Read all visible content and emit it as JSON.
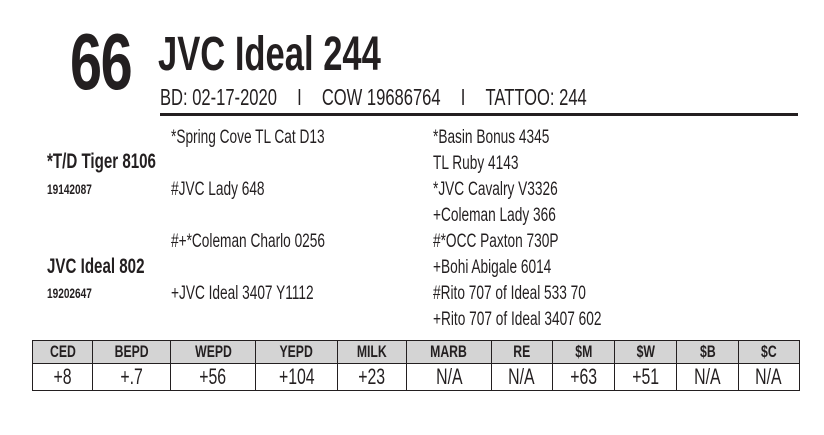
{
  "lot_number": "66",
  "animal_name": "JVC Ideal 244",
  "info": {
    "birth_date": "BD: 02-17-2020",
    "separator": "I",
    "registration": "COW 19686764",
    "tattoo": "TATTOO: 244"
  },
  "pedigree": {
    "sire": {
      "name": "*T/D Tiger 8106",
      "reg": "19142087"
    },
    "dam": {
      "name": "JVC Ideal 802",
      "reg": "19202647"
    },
    "sire_sire": "*Spring Cove TL Cat D13",
    "sire_dam": "#JVC Lady 648",
    "dam_sire": "#+*Coleman Charlo 0256",
    "dam_dam": "+JVC Ideal 3407 Y1112",
    "great_grandparents": [
      "*Basin Bonus 4345",
      "TL Ruby 4143",
      "*JVC Cavalry V3326",
      "+Coleman Lady 366",
      "#*OCC Paxton 730P",
      "+Bohi Abigale 6014",
      "#Rito 707 of Ideal 533 70",
      "+Rito 707 of Ideal 3407 602"
    ]
  },
  "epd": {
    "headers": [
      "CED",
      "BEPD",
      "WEPD",
      "YEPD",
      "MILK",
      "MARB",
      "RE",
      "$M",
      "$W",
      "$B",
      "$C"
    ],
    "values": [
      "+8",
      "+.7",
      "+56",
      "+104",
      "+23",
      "N/A",
      "N/A",
      "+63",
      "+51",
      "N/A",
      "N/A"
    ]
  }
}
